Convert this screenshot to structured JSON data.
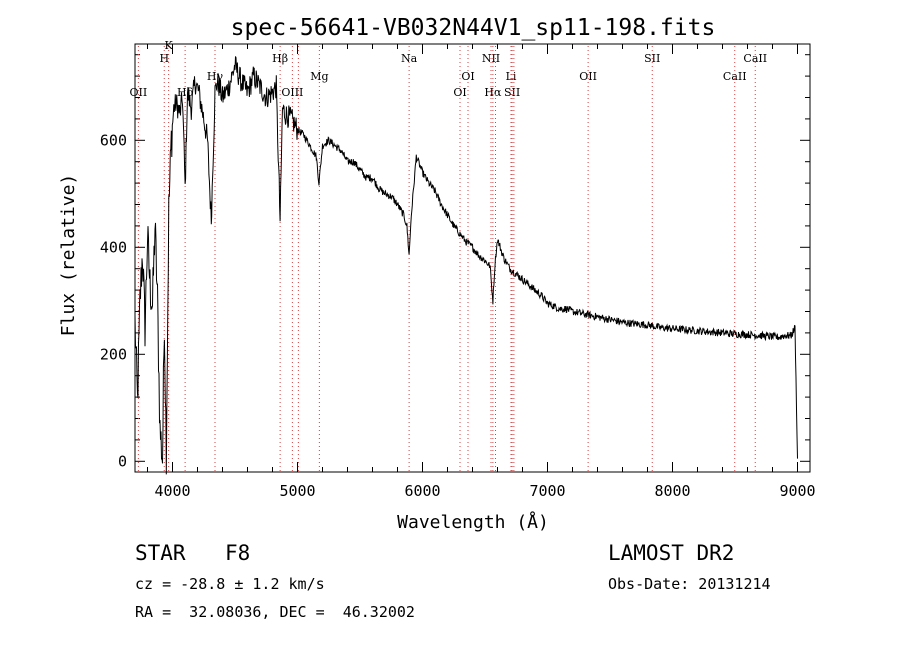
{
  "chart_data": {
    "type": "line",
    "title": "spec-56641-VB032N44V1_sp11-198.fits",
    "xlabel": "Wavelength (Å)",
    "ylabel": "Flux (relative)",
    "xlim": [
      3700,
      9100
    ],
    "ylim": [
      -20,
      780
    ],
    "xticks": [
      4000,
      5000,
      6000,
      7000,
      8000,
      9000
    ],
    "yticks": [
      0,
      200,
      400,
      600
    ],
    "grid": false,
    "line_color": "#000000",
    "marker_color": "#d04040",
    "series": [
      {
        "x": [
          3700,
          3720,
          3740,
          3760,
          3780,
          3800,
          3820,
          3840,
          3860,
          3880,
          3900,
          3920,
          3935,
          3950,
          3970,
          3990,
          4010,
          4030,
          4060,
          4080,
          4101,
          4120,
          4150,
          4180,
          4210,
          4250,
          4280,
          4310,
          4340,
          4360,
          4400,
          4450,
          4500,
          4550,
          4600,
          4650,
          4700,
          4750,
          4800,
          4830,
          4861,
          4880,
          4900,
          4950,
          5000,
          5050,
          5100,
          5150,
          5172,
          5200,
          5250,
          5300,
          5350,
          5400,
          5450,
          5500,
          5550,
          5600,
          5650,
          5700,
          5750,
          5800,
          5850,
          5875,
          5893,
          5910,
          5950,
          6000,
          6050,
          6100,
          6150,
          6200,
          6250,
          6300,
          6350,
          6400,
          6450,
          6500,
          6540,
          6563,
          6580,
          6600,
          6650,
          6700,
          6750,
          6800,
          6850,
          6900,
          6950,
          7000,
          7050,
          7100,
          7150,
          7200,
          7300,
          7400,
          7500,
          7600,
          7700,
          7800,
          7900,
          8000,
          8100,
          8200,
          8300,
          8400,
          8500,
          8600,
          8700,
          8800,
          8850,
          8900,
          8950,
          8980,
          9000
        ],
        "y": [
          260,
          110,
          300,
          390,
          250,
          420,
          330,
          290,
          440,
          300,
          60,
          5,
          270,
          20,
          470,
          600,
          660,
          670,
          650,
          680,
          510,
          690,
          660,
          710,
          690,
          640,
          600,
          450,
          690,
          710,
          680,
          700,
          740,
          710,
          690,
          720,
          700,
          680,
          690,
          700,
          450,
          660,
          650,
          640,
          620,
          610,
          590,
          570,
          520,
          590,
          600,
          590,
          580,
          560,
          560,
          545,
          530,
          530,
          510,
          500,
          495,
          480,
          460,
          440,
          385,
          460,
          570,
          540,
          520,
          505,
          480,
          460,
          440,
          425,
          410,
          400,
          385,
          375,
          365,
          300,
          370,
          415,
          380,
          360,
          350,
          340,
          330,
          320,
          310,
          295,
          290,
          285,
          285,
          280,
          275,
          270,
          265,
          260,
          257,
          255,
          250,
          248,
          246,
          244,
          242,
          240,
          238,
          237,
          235,
          233,
          232,
          235,
          235,
          250,
          5
        ]
      }
    ],
    "line_markers": [
      {
        "wavelength": 3727,
        "label": "OII",
        "row": 3
      },
      {
        "wavelength": 3934,
        "label": "H",
        "row": 1
      },
      {
        "wavelength": 3969,
        "label": "K",
        "row": 0
      },
      {
        "wavelength": 4101,
        "label": "Hδ",
        "row": 3
      },
      {
        "wavelength": 4340,
        "label": "Hγ",
        "row": 2
      },
      {
        "wavelength": 4861,
        "label": "Hβ",
        "row": 1
      },
      {
        "wavelength": 4959,
        "label": "OIII",
        "row": 3
      },
      {
        "wavelength": 5007,
        "label": "",
        "row": 3
      },
      {
        "wavelength": 5175,
        "label": "Mg",
        "row": 2
      },
      {
        "wavelength": 5893,
        "label": "Na",
        "row": 1
      },
      {
        "wavelength": 6300,
        "label": "OI",
        "row": 3
      },
      {
        "wavelength": 6364,
        "label": "OI",
        "row": 2
      },
      {
        "wavelength": 6548,
        "label": "NII",
        "row": 1
      },
      {
        "wavelength": 6563,
        "label": "Hα",
        "row": 3
      },
      {
        "wavelength": 6584,
        "label": "",
        "row": 1
      },
      {
        "wavelength": 6708,
        "label": "Li",
        "row": 2
      },
      {
        "wavelength": 6717,
        "label": "SII",
        "row": 3
      },
      {
        "wavelength": 6731,
        "label": "",
        "row": 3
      },
      {
        "wavelength": 7325,
        "label": "OII",
        "row": 2
      },
      {
        "wavelength": 7838,
        "label": "SII",
        "row": 1
      },
      {
        "wavelength": 8498,
        "label": "CaII",
        "row": 2
      },
      {
        "wavelength": 8662,
        "label": "CaII",
        "row": 1
      }
    ]
  },
  "info": {
    "class_label": "STAR",
    "subclass": "F8",
    "redshift": "cz = -28.8 ± 1.2 km/s",
    "coords": "RA =  32.08036, DEC =  46.32002",
    "survey": "LAMOST DR2",
    "obs_date": "Obs-Date: 20131214"
  }
}
